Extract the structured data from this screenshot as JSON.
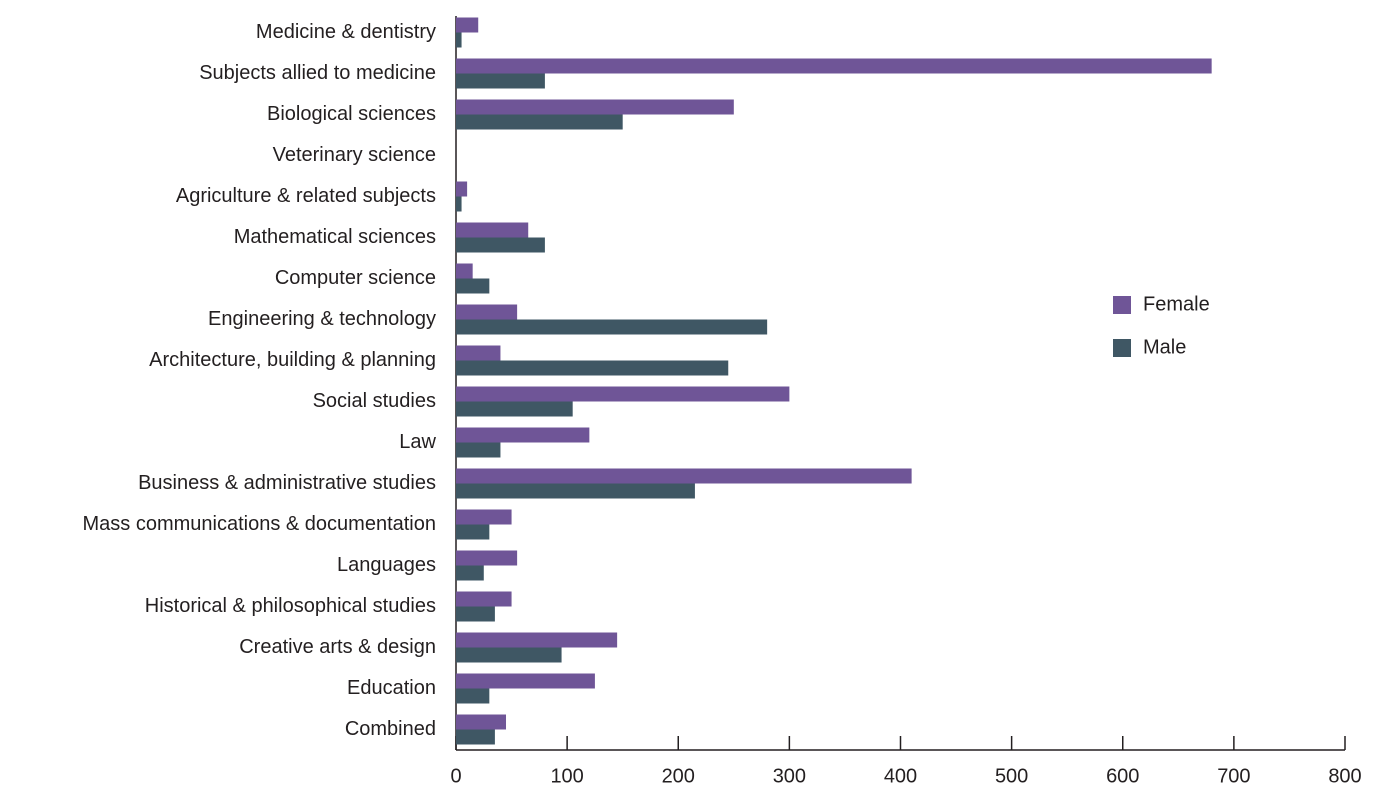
{
  "chart_data": {
    "type": "hbar",
    "categories": [
      "Medicine & dentistry",
      "Subjects allied to medicine",
      "Biological sciences",
      "Veterinary science",
      "Agriculture & related subjects",
      "Mathematical sciences",
      "Computer science",
      "Engineering & technology",
      "Architecture, building & planning",
      "Social studies",
      "Law",
      "Business & administrative studies",
      "Mass communications & documentation",
      "Languages",
      "Historical & philosophical studies",
      "Creative arts & design",
      "Education",
      "Combined"
    ],
    "series": [
      {
        "name": "Female",
        "color": "#6f5597",
        "values": [
          20,
          680,
          250,
          0,
          10,
          65,
          15,
          55,
          40,
          300,
          120,
          410,
          50,
          55,
          50,
          145,
          125,
          45
        ]
      },
      {
        "name": "Male",
        "color": "#3f5764",
        "values": [
          5,
          80,
          150,
          0,
          5,
          80,
          30,
          280,
          245,
          105,
          40,
          215,
          30,
          25,
          35,
          95,
          30,
          35
        ]
      }
    ],
    "xlim": [
      0,
      800
    ],
    "xticks": [
      0,
      100,
      200,
      300,
      400,
      500,
      600,
      700,
      800
    ],
    "legend": "right"
  }
}
